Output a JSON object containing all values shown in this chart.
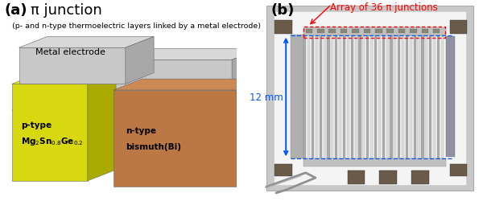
{
  "fig_width": 6.0,
  "fig_height": 2.51,
  "dpi": 100,
  "background_color": "#ffffff",
  "panel_a": {
    "label": "(a)",
    "title": "π junction",
    "subtitle": "(p- and n-type thermoelectric layers linked by a metal electrode)",
    "title_fontsize": 13,
    "subtitle_fontsize": 6.8,
    "label_fontsize": 13,
    "metal_electrode_label": "Metal electrode",
    "metal_electrode_color_top": "#d8d8d8",
    "metal_electrode_color_side": "#a8a8a8",
    "metal_electrode_color_front": "#c8c8c8",
    "ptype_color_top": "#e8e820",
    "ptype_color_side": "#aaaa00",
    "ptype_color_front": "#d8d810",
    "ptype_label_line1": "p-type",
    "ptype_label_line2": "Mg$_2$Sn$_{0.8}$Ge$_{0.2}$",
    "ntype_color_top": "#cc8855",
    "ntype_color_side": "#996633",
    "ntype_color_front": "#bb7744",
    "ntype_label_line1": "n-type",
    "ntype_label_line2": "bismuth(Bi)",
    "text_color": "#000000",
    "block_fontsize": 7.5
  },
  "panel_b": {
    "label": "(b)",
    "label_fontsize": 13,
    "annotation_text": "Array of 36 π junctions",
    "annotation_color": "#ff0000",
    "annotation_fontsize": 8.5,
    "dim_label": "12 mm",
    "dim_color": "#0055ff",
    "dim_fontsize": 8.5,
    "strip_colors": [
      "#aaaaaa",
      "#dddddd"
    ],
    "corner_pad_color": "#6a5a4a",
    "num_strips": 36
  }
}
